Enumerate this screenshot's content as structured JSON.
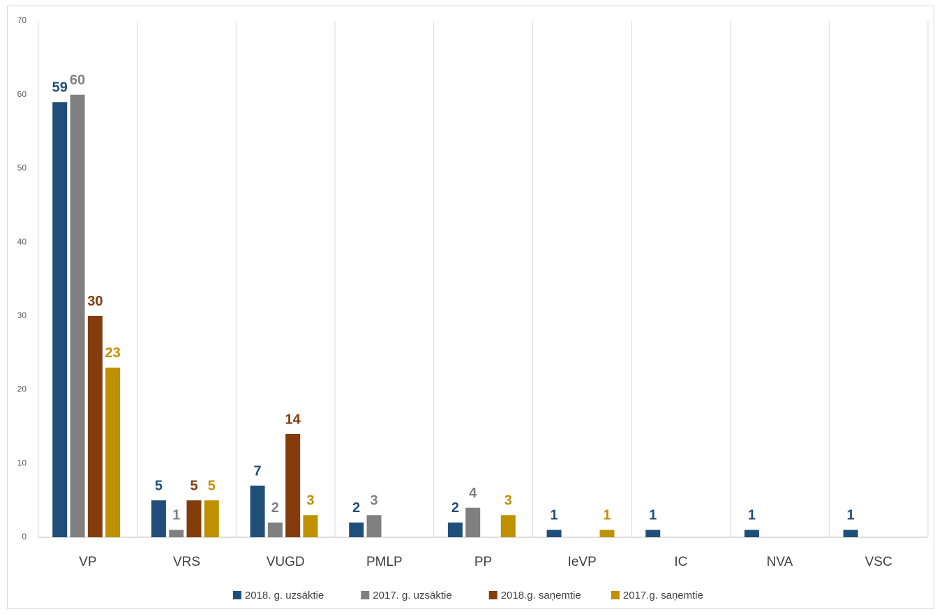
{
  "chart_data": {
    "type": "bar",
    "categories": [
      "VP",
      "VRS",
      "VUGD",
      "PMLP",
      "PP",
      "IeVP",
      "IC",
      "NVA",
      "VSC"
    ],
    "series": [
      {
        "name": "2018. g. uzsāktie",
        "color": "#1f4e79",
        "values": [
          59,
          5,
          7,
          2,
          2,
          1,
          1,
          1,
          1
        ]
      },
      {
        "name": "2017. g. uzsāktie",
        "color": "#808080",
        "values": [
          60,
          1,
          2,
          3,
          4,
          null,
          null,
          null,
          null
        ]
      },
      {
        "name": "2018.g. saņemtie",
        "color": "#843c0c",
        "values": [
          30,
          5,
          14,
          null,
          null,
          null,
          null,
          null,
          null
        ]
      },
      {
        "name": "2017.g. saņemtie",
        "color": "#bf9000",
        "values": [
          23,
          5,
          3,
          null,
          3,
          1,
          null,
          null,
          null
        ]
      }
    ],
    "ylim": [
      0,
      70
    ],
    "yticks": [
      0,
      10,
      20,
      30,
      40,
      50,
      60,
      70
    ],
    "legend": "bottom"
  }
}
